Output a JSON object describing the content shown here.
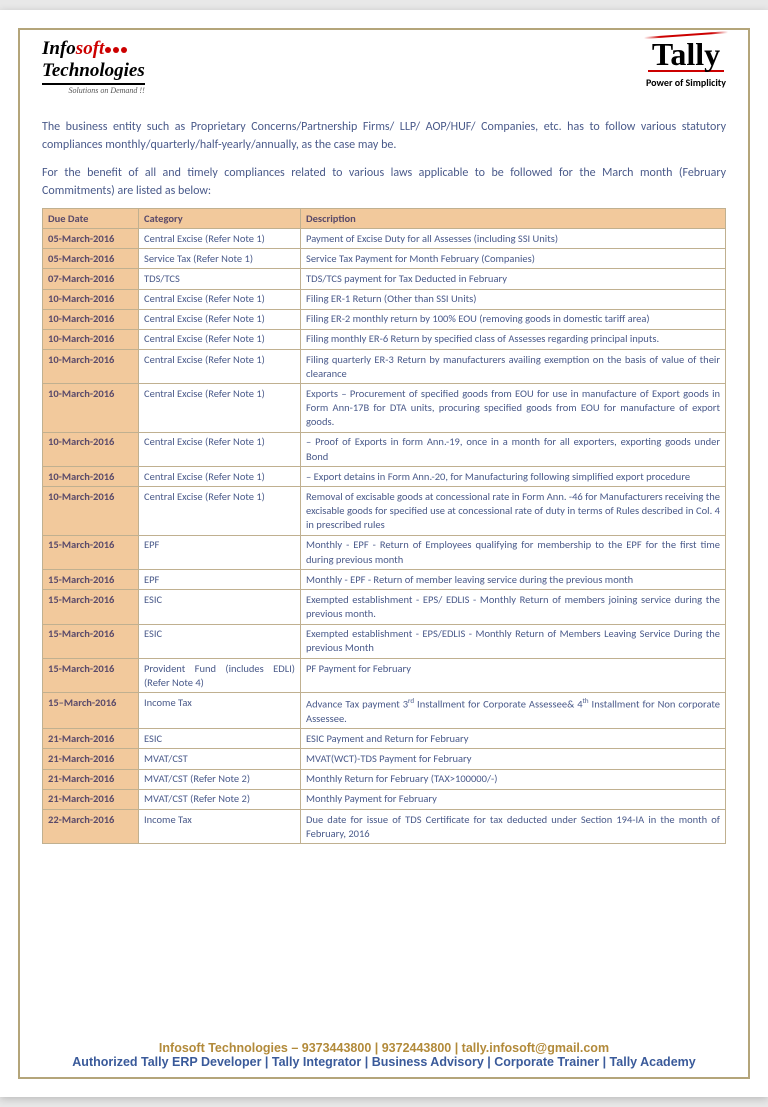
{
  "header": {
    "logo_left": {
      "part1": "Info",
      "part2": "soft",
      "tech": "Technologies",
      "tagline": "Solutions on Demand !!"
    },
    "logo_right": {
      "name": "Tally",
      "tagline": "Power of Simplicity"
    }
  },
  "intro1": "The business entity such as Proprietary Concerns/Partnership Firms/ LLP/ AOP/HUF/ Companies, etc. has to follow various statutory compliances monthly/quarterly/half-yearly/annually, as the case may be.",
  "intro2": "For the benefit of all and timely compliances related to various laws applicable to be followed for the March month (February Commitments) are listed as below:",
  "table": {
    "columns": [
      "Due Date",
      "Category",
      "Description"
    ],
    "rows": [
      [
        "05-March-2016",
        "Central Excise (Refer Note 1)",
        "Payment of Excise Duty for all Assesses (including SSI Units)"
      ],
      [
        "05-March-2016",
        "Service Tax (Refer Note 1)",
        "Service Tax Payment for Month February (Companies)"
      ],
      [
        "07-March-2016",
        "TDS/TCS",
        "TDS/TCS payment for Tax Deducted in February"
      ],
      [
        "10-March-2016",
        "Central Excise (Refer Note 1)",
        "Filing ER-1 Return (Other than SSI Units)"
      ],
      [
        "10-March-2016",
        "Central Excise (Refer Note 1)",
        "Filing ER-2 monthly return by 100% EOU (removing goods in domestic tariff area)"
      ],
      [
        "10-March-2016",
        "Central Excise (Refer Note 1)",
        "Filing monthly ER-6 Return by specified class of Assesses regarding principal inputs."
      ],
      [
        "10-March-2016",
        "Central Excise (Refer Note 1)",
        "Filing quarterly ER-3 Return by manufacturers availing exemption on the basis of value of their clearance"
      ],
      [
        "10-March-2016",
        "Central Excise (Refer Note 1)",
        "Exports – Procurement of specified goods from EOU for use in manufacture of Export goods in Form Ann-17B for DTA units, procuring specified goods from EOU for manufacture of export goods."
      ],
      [
        "10-March-2016",
        "Central Excise (Refer Note 1)",
        "– Proof of Exports in form Ann.-19, once in a month for all exporters, exporting goods under Bond"
      ],
      [
        "10-March-2016",
        "Central Excise (Refer Note 1)",
        "– Export detains in Form Ann.-20, for Manufacturing following simplified export procedure"
      ],
      [
        "10-March-2016",
        "Central Excise (Refer Note 1)",
        "Removal of excisable goods at concessional rate in Form Ann. -46 for Manufacturers receiving the excisable goods for specified use at concessional rate of duty in terms of Rules described in Col. 4 in prescribed rules"
      ],
      [
        "15-March-2016",
        "EPF",
        "Monthly - EPF - Return of Employees qualifying for membership to the EPF for the first time during previous month"
      ],
      [
        "15-March-2016",
        "EPF",
        "Monthly - EPF - Return of member leaving service during the previous month"
      ],
      [
        "15-March-2016",
        "ESIC",
        "Exempted establishment - EPS/ EDLIS - Monthly Return of members joining service during the previous month."
      ],
      [
        "15-March-2016",
        "ESIC",
        "Exempted establishment - EPS/EDLIS - Monthly Return of Members Leaving Service During the previous Month"
      ],
      [
        "15-March-2016",
        "Provident Fund (includes EDLI) (Refer Note 4)",
        "PF Payment for February"
      ],
      [
        "15–March-2016",
        "Income Tax",
        "Advance Tax payment 3rd Installment for Corporate Assessee& 4th Installment for Non corporate Assessee."
      ],
      [
        "21-March-2016",
        "ESIC",
        "ESIC Payment and Return for February"
      ],
      [
        "21-March-2016",
        "MVAT/CST",
        "MVAT(WCT)-TDS Payment for February"
      ],
      [
        "21-March-2016",
        "MVAT/CST (Refer Note 2)",
        "Monthly Return for February (TAX>100000/-)"
      ],
      [
        "21-March-2016",
        "MVAT/CST (Refer Note 2)",
        "Monthly Payment for February"
      ],
      [
        "22-March-2016",
        "Income Tax",
        "Due date for issue of TDS Certificate for tax deducted under Section 194-IA in the month of February, 2016"
      ]
    ],
    "header_bg": "#f2c99c",
    "date_bg": "#f2c99c",
    "border_color": "#c0b090",
    "text_color": "#4a5a8a"
  },
  "footer": {
    "line1": "Infosoft Technologies – 9373443800 | 9372443800 | tally.infosoft@gmail.com",
    "line2": "Authorized Tally ERP Developer | Tally Integrator | Business Advisory | Corporate Trainer | Tally Academy"
  },
  "colors": {
    "page_bg": "#ffffff",
    "outer_bg": "#e8e8e8",
    "frame_border": "#b4a57a",
    "intro_text": "#4a5a8a",
    "footer1": "#b28a3a",
    "footer2": "#3a5a9a",
    "logo_red": "#c00"
  }
}
